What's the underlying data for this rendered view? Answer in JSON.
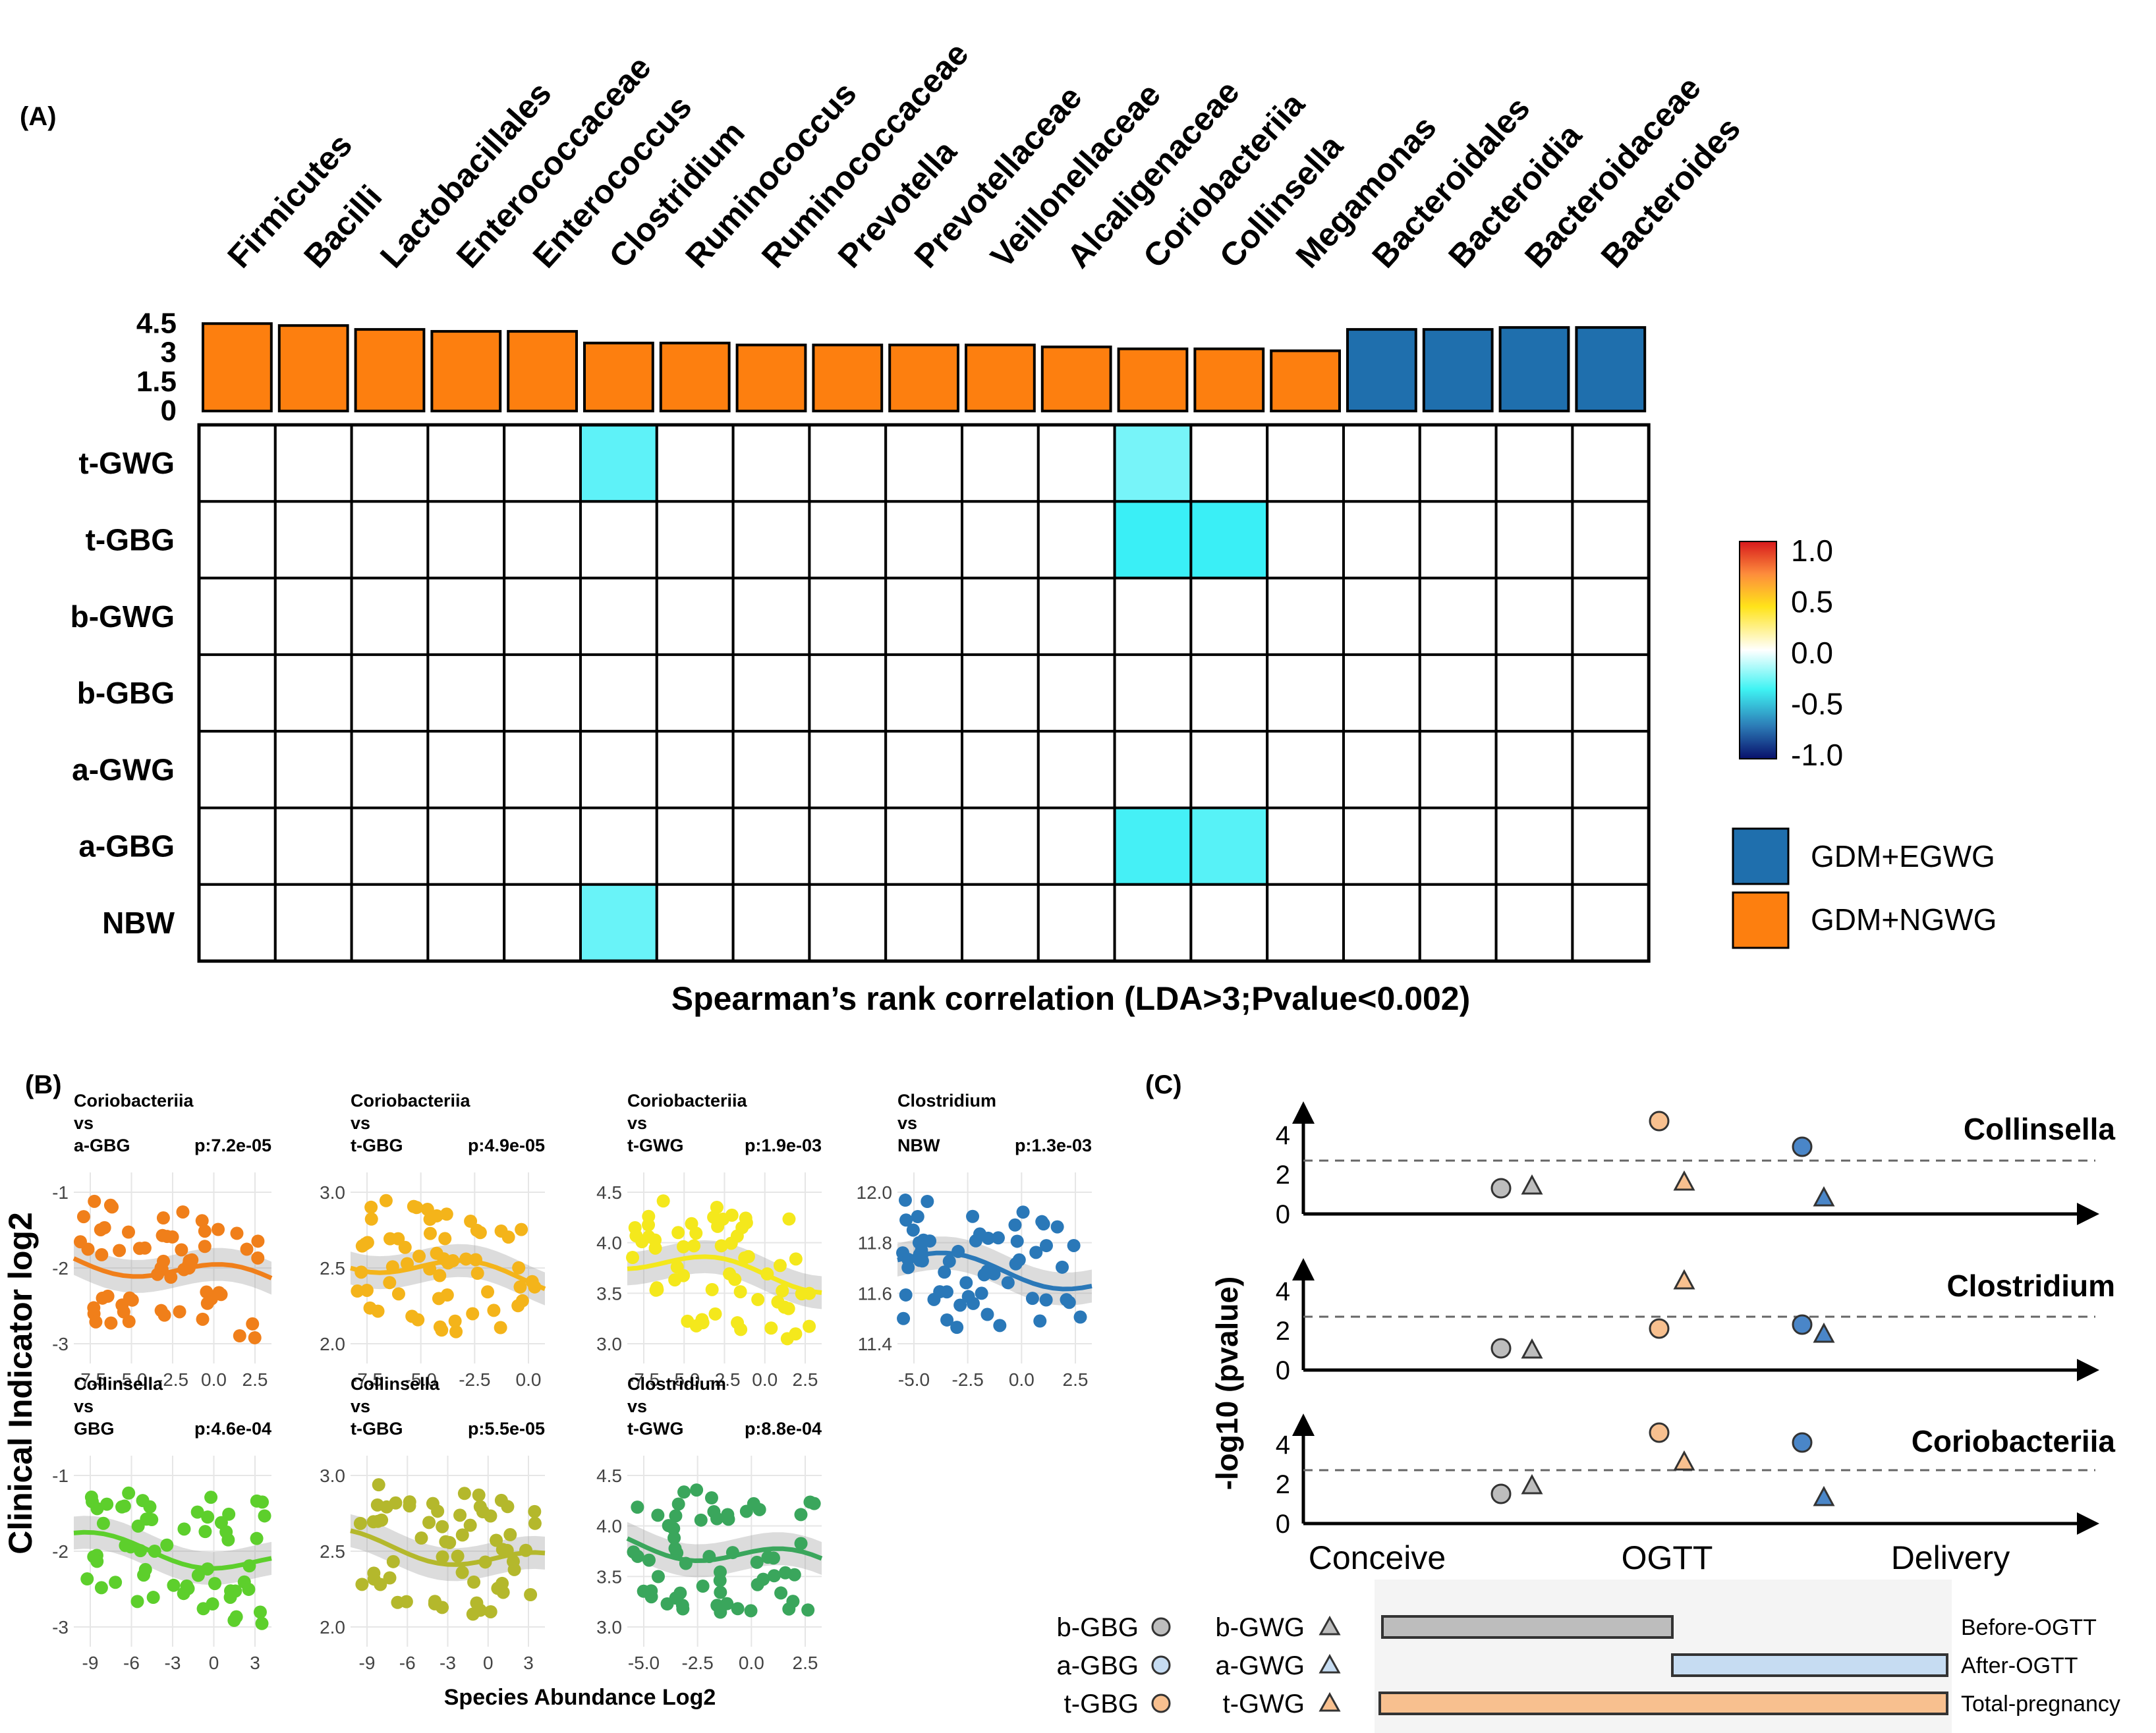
{
  "panelA": {
    "label": "(A)",
    "taxa": [
      "Firmicutes",
      "Bacilli",
      "Lactobacillales",
      "Enterococcaceae",
      "Enterococcus",
      "Clostridium",
      "Ruminococcus",
      "Ruminococcaceae",
      "Prevotella",
      "Prevotellaceae",
      "Veillonellaceae",
      "Alcaligenaceae",
      "Coriobacteriia",
      "Collinsella",
      "Megamonas",
      "Bacteroidales",
      "Bacteroidia",
      "Bacteroidaceae",
      "Bacteroides"
    ],
    "lda_axis_ticks": [
      "4.5",
      "3",
      "1.5",
      "0"
    ],
    "lda_scores": [
      4.5,
      4.4,
      4.2,
      4.1,
      4.1,
      3.5,
      3.5,
      3.4,
      3.4,
      3.4,
      3.4,
      3.3,
      3.2,
      3.2,
      3.1,
      4.2,
      4.2,
      4.3,
      4.3
    ],
    "groups": [
      "NGWG",
      "NGWG",
      "NGWG",
      "NGWG",
      "NGWG",
      "NGWG",
      "NGWG",
      "NGWG",
      "NGWG",
      "NGWG",
      "NGWG",
      "NGWG",
      "NGWG",
      "NGWG",
      "NGWG",
      "EGWG",
      "EGWG",
      "EGWG",
      "EGWG"
    ],
    "rows": [
      "t-GWG",
      "t-GBG",
      "b-GWG",
      "b-GBG",
      "a-GWG",
      "a-GBG",
      "NBW"
    ],
    "significant_cells": [
      {
        "row": "t-GWG",
        "taxon": "Clostridium",
        "rho": -0.45
      },
      {
        "row": "t-GWG",
        "taxon": "Coriobacteriia",
        "rho": -0.38
      },
      {
        "row": "t-GBG",
        "taxon": "Coriobacteriia",
        "rho": -0.55
      },
      {
        "row": "t-GBG",
        "taxon": "Collinsella",
        "rho": -0.55
      },
      {
        "row": "a-GBG",
        "taxon": "Coriobacteriia",
        "rho": -0.52
      },
      {
        "row": "a-GBG",
        "taxon": "Collinsella",
        "rho": -0.47
      },
      {
        "row": "NBW",
        "taxon": "Clostridium",
        "rho": -0.42
      }
    ],
    "colorbar_ticks": [
      "1.0",
      "0.5",
      "0.0",
      "-0.5",
      "-1.0"
    ],
    "legend": [
      {
        "label": "GDM+EGWG",
        "color": "#1f6fad"
      },
      {
        "label": "GDM+NGWG",
        "color": "#fd7f0f"
      }
    ],
    "caption": "Spearman’s rank correlation (LDA>3;Pvalue<0.002)"
  },
  "panelB": {
    "label": "(B)",
    "ylabel": "Clinical Indicator log2",
    "xlabel": "Species Abundance Log2",
    "plots": [
      {
        "t1": "Coriobacteriia",
        "t2": "vs",
        "t3": "a-GBG",
        "p": "p:7.2e-05",
        "color": "#f07f1a",
        "yticks": [
          "-1",
          "-2",
          "-3"
        ],
        "xticks": [
          "-7.5",
          "-5.0",
          "-2.5",
          "0.0",
          "2.5"
        ]
      },
      {
        "t1": "Coriobacteriia",
        "t2": "vs",
        "t3": "t-GBG",
        "p": "p:4.9e-05",
        "color": "#f4b41a",
        "yticks": [
          "3.0",
          "2.5",
          "2.0"
        ],
        "xticks": [
          "-7.5",
          "-5.0",
          "-2.5",
          "0.0"
        ]
      },
      {
        "t1": "Coriobacteriia",
        "t2": "vs",
        "t3": "t-GWG",
        "p": "p:1.9e-03",
        "color": "#f4e81c",
        "yticks": [
          "4.5",
          "4.0",
          "3.5",
          "3.0"
        ],
        "xticks": [
          "-7.5",
          "-5.0",
          "-2.5",
          "0.0",
          "2.5"
        ]
      },
      {
        "t1": "Clostridium",
        "t2": "vs",
        "t3": "NBW",
        "p": "p:1.3e-03",
        "color": "#2a78b8",
        "yticks": [
          "12.0",
          "11.8",
          "11.6",
          "11.4"
        ],
        "xticks": [
          "-5.0",
          "-2.5",
          "0.0",
          "2.5"
        ]
      },
      {
        "t1": "Collinsella",
        "t2": "vs",
        "t3": "GBG",
        "p": "p:4.6e-04",
        "color": "#5dcf2c",
        "yticks": [
          "-1",
          "-2",
          "-3"
        ],
        "xticks": [
          "-9",
          "-6",
          "-3",
          "0",
          "3"
        ]
      },
      {
        "t1": "Collinsella",
        "t2": "vs",
        "t3": "t-GBG",
        "p": "p:5.5e-05",
        "color": "#b4b82c",
        "yticks": [
          "3.0",
          "2.5",
          "2.0"
        ],
        "xticks": [
          "-9",
          "-6",
          "-3",
          "0",
          "3"
        ]
      },
      {
        "t1": "Clostridium",
        "t2": "vs",
        "t3": "t-GWG",
        "p": "p:8.8e-04",
        "color": "#3aa65c",
        "yticks": [
          "4.5",
          "4.0",
          "3.5",
          "3.0"
        ],
        "xticks": [
          "-5.0",
          "-2.5",
          "0.0",
          "2.5"
        ]
      }
    ]
  },
  "panelC": {
    "label": "(C)",
    "ylabel": "-log10 (pvalue)",
    "yticks": [
      "4",
      "2",
      "0"
    ],
    "threshold": 2.7,
    "xlabels": [
      "Conceive",
      "OGTT",
      "Delivery"
    ],
    "subplots": [
      {
        "title": "Collinsella",
        "points": [
          {
            "period": "Before-OGTT",
            "indicator": "b-GBG",
            "value": 1.3
          },
          {
            "period": "Before-OGTT",
            "indicator": "b-GWG",
            "value": 1.4
          },
          {
            "period": "Total-pregnancy",
            "indicator": "t-GBG",
            "value": 4.7
          },
          {
            "period": "Total-pregnancy",
            "indicator": "t-GWG",
            "value": 1.6
          },
          {
            "period": "After-OGTT",
            "indicator": "a-GBG",
            "value": 3.4
          },
          {
            "period": "After-OGTT",
            "indicator": "a-GWG",
            "value": 0.8
          }
        ]
      },
      {
        "title": "Clostridium",
        "points": [
          {
            "period": "Before-OGTT",
            "indicator": "b-GBG",
            "value": 1.1
          },
          {
            "period": "Before-OGTT",
            "indicator": "b-GWG",
            "value": 1.0
          },
          {
            "period": "Total-pregnancy",
            "indicator": "t-GBG",
            "value": 2.1
          },
          {
            "period": "Total-pregnancy",
            "indicator": "t-GWG",
            "value": 4.5
          },
          {
            "period": "After-OGTT",
            "indicator": "a-GBG",
            "value": 2.3
          },
          {
            "period": "After-OGTT",
            "indicator": "a-GWG",
            "value": 1.8
          }
        ]
      },
      {
        "title": "Coriobacteriia",
        "points": [
          {
            "period": "Before-OGTT",
            "indicator": "b-GBG",
            "value": 1.5
          },
          {
            "period": "Before-OGTT",
            "indicator": "b-GWG",
            "value": 1.9
          },
          {
            "period": "Total-pregnancy",
            "indicator": "t-GBG",
            "value": 4.6
          },
          {
            "period": "Total-pregnancy",
            "indicator": "t-GWG",
            "value": 3.1
          },
          {
            "period": "After-OGTT",
            "indicator": "a-GBG",
            "value": 4.1
          },
          {
            "period": "After-OGTT",
            "indicator": "a-GWG",
            "value": 1.3
          }
        ]
      }
    ],
    "legend_rows": [
      {
        "circle": "b-GBG",
        "triangle": "b-GWG",
        "color": "#bdbdbd",
        "bar": "Before-OGTT"
      },
      {
        "circle": "a-GBG",
        "triangle": "a-GWG",
        "color": "#c6dcf2",
        "bar": "After-OGTT"
      },
      {
        "circle": "t-GBG",
        "triangle": "t-GWG",
        "color": "#f8c08f",
        "bar": "Total-pregnancy"
      }
    ],
    "colors": {
      "before": "#bdbdbd",
      "after": "#4a86c8",
      "total": "#f8c08f"
    }
  }
}
